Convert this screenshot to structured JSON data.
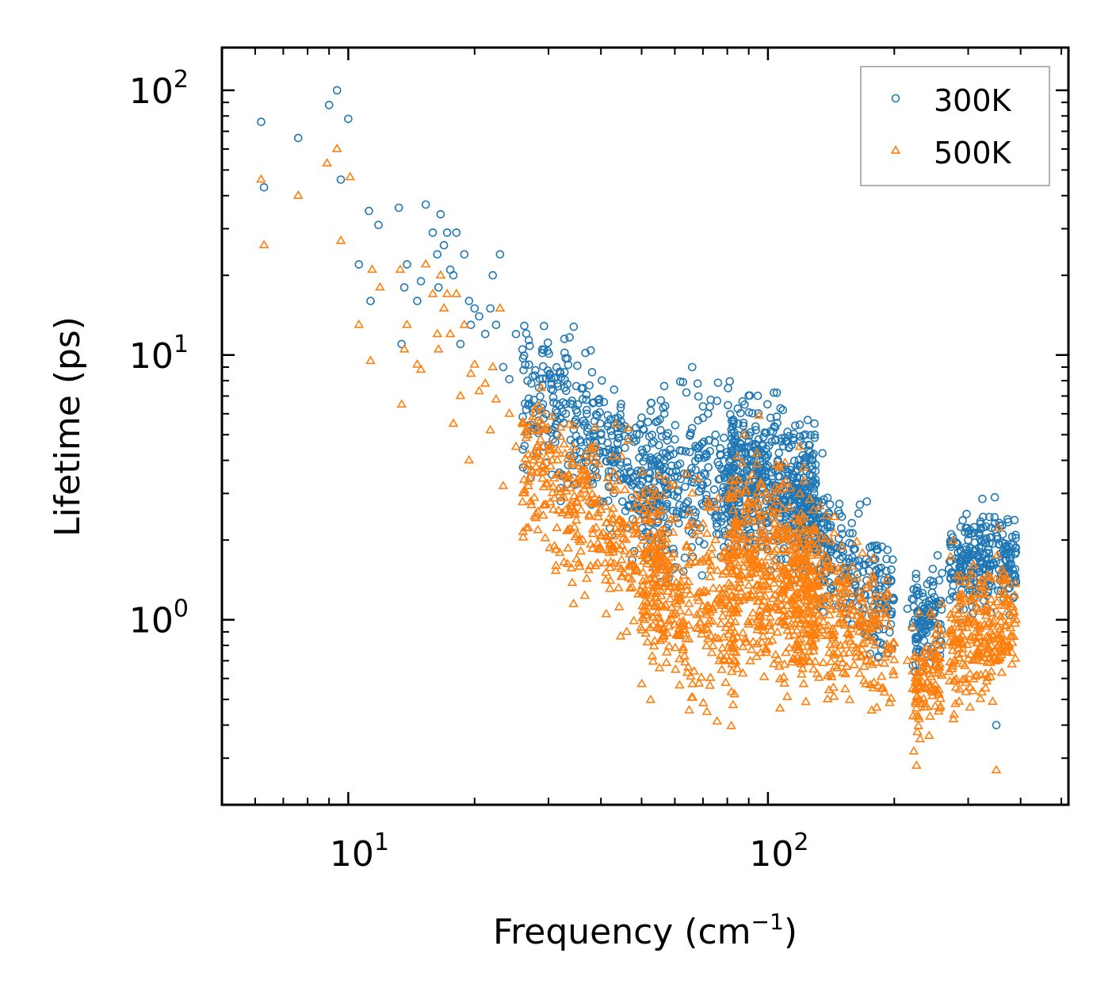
{
  "chart_data": {
    "type": "scatter",
    "title": "",
    "xlabel": "Frequency (cm",
    "xlabel_sup": "−1",
    "xlabel_tail": ")",
    "ylabel": "Lifetime (ps)",
    "xscale": "log",
    "yscale": "log",
    "xlim": [
      5,
      520
    ],
    "ylim": [
      0.2,
      145
    ],
    "grid": false,
    "legend_position": "top-right",
    "x_ticks": [
      {
        "value": 10,
        "base": "10",
        "exp": "1"
      },
      {
        "value": 100,
        "base": "10",
        "exp": "2"
      }
    ],
    "y_ticks": [
      {
        "value": 1,
        "base": "10",
        "exp": "0"
      },
      {
        "value": 10,
        "base": "10",
        "exp": "1"
      },
      {
        "value": 100,
        "base": "10",
        "exp": "2"
      }
    ],
    "series": [
      {
        "name": "300K",
        "marker": "circle",
        "color": "#1f77b4",
        "points": [
          [
            6.2,
            76
          ],
          [
            6.3,
            43
          ],
          [
            7.6,
            66
          ],
          [
            9.0,
            88
          ],
          [
            9.4,
            100
          ],
          [
            9.6,
            46
          ],
          [
            10.0,
            78
          ],
          [
            10.6,
            22
          ],
          [
            11.2,
            35
          ],
          [
            11.3,
            16
          ],
          [
            11.8,
            31
          ],
          [
            13.2,
            36
          ],
          [
            13.4,
            11
          ],
          [
            13.6,
            18
          ],
          [
            13.8,
            22
          ],
          [
            14.6,
            16
          ],
          [
            14.9,
            19
          ],
          [
            15.3,
            37
          ],
          [
            15.9,
            29
          ],
          [
            16.3,
            24
          ],
          [
            16.4,
            18
          ],
          [
            16.6,
            34
          ],
          [
            16.9,
            26
          ],
          [
            17.2,
            29
          ],
          [
            17.5,
            21
          ],
          [
            17.8,
            20
          ],
          [
            18.1,
            29
          ],
          [
            18.5,
            11
          ],
          [
            18.9,
            24
          ],
          [
            19.4,
            16
          ],
          [
            19.6,
            13
          ],
          [
            20.0,
            15
          ],
          [
            20.5,
            14
          ],
          [
            21.2,
            12
          ],
          [
            21.8,
            15
          ],
          [
            22.1,
            20
          ],
          [
            22.5,
            13
          ],
          [
            23.0,
            24
          ],
          [
            23.4,
            9.0
          ],
          [
            24.2,
            8.1
          ],
          [
            25.1,
            12
          ],
          [
            26.0,
            10.5
          ],
          [
            27.5,
            8.3
          ],
          [
            29.0,
            10.5
          ],
          [
            30.2,
            8.5
          ],
          [
            31.5,
            7.8
          ],
          [
            33.0,
            6.0
          ],
          [
            35.0,
            5.5
          ],
          [
            37.0,
            6.2
          ],
          [
            40.0,
            5.0
          ],
          [
            43.0,
            7.4
          ],
          [
            45.0,
            5.3
          ],
          [
            48.0,
            4.7
          ],
          [
            50.0,
            5.8
          ],
          [
            55.0,
            3.5
          ],
          [
            60.0,
            4.8
          ],
          [
            66.0,
            9.0
          ],
          [
            68.0,
            7.8
          ],
          [
            70.0,
            6.4
          ],
          [
            72.0,
            6.0
          ],
          [
            75.0,
            5.0
          ],
          [
            80.0,
            4.3
          ],
          [
            85.0,
            5.5
          ],
          [
            90.0,
            4.5
          ],
          [
            95.0,
            4.8
          ],
          [
            100.0,
            4.2
          ],
          [
            105.0,
            7.2
          ],
          [
            110.0,
            3.7
          ],
          [
            120.0,
            3.2
          ],
          [
            130.0,
            2.8
          ],
          [
            140.0,
            2.5
          ],
          [
            150.0,
            1.9
          ],
          [
            165.0,
            1.6
          ],
          [
            180.0,
            1.3
          ],
          [
            190.0,
            1.1
          ],
          [
            215.0,
            1.1
          ],
          [
            225.0,
            0.86
          ],
          [
            240.0,
            1.1
          ],
          [
            260.0,
            1.5
          ],
          [
            280.0,
            1.7
          ],
          [
            300.0,
            2.0
          ],
          [
            320.0,
            1.8
          ],
          [
            340.0,
            1.6
          ],
          [
            350.0,
            0.4
          ],
          [
            370.0,
            1.9
          ],
          [
            390.0,
            1.8
          ]
        ],
        "dense_regions": [
          {
            "x_range": [
              26,
              58
            ],
            "y_center": [
              7.5,
              3.0
            ],
            "spread": 0.28,
            "count": 380
          },
          {
            "x_range": [
              50,
              85
            ],
            "y_center": [
              3.0,
              3.4
            ],
            "spread": 0.32,
            "count": 260
          },
          {
            "x_range": [
              80,
              130
            ],
            "y_center": [
              3.6,
              3.0
            ],
            "spread": 0.28,
            "count": 480
          },
          {
            "x_range": [
              115,
              200
            ],
            "y_center": [
              2.6,
              1.1
            ],
            "spread": 0.22,
            "count": 300
          },
          {
            "x_range": [
              220,
              260
            ],
            "y_center": [
              0.95,
              1.0
            ],
            "spread": 0.2,
            "count": 110
          },
          {
            "x_range": [
              270,
              390
            ],
            "y_center": [
              1.6,
              1.7
            ],
            "spread": 0.17,
            "count": 260
          }
        ]
      },
      {
        "name": "500K",
        "marker": "triangle",
        "color": "#ff7f0e",
        "points": [
          [
            6.2,
            46
          ],
          [
            6.3,
            26
          ],
          [
            7.6,
            40
          ],
          [
            8.9,
            53
          ],
          [
            9.4,
            60
          ],
          [
            9.6,
            27
          ],
          [
            10.1,
            47
          ],
          [
            10.6,
            13
          ],
          [
            11.3,
            9.5
          ],
          [
            11.4,
            21
          ],
          [
            11.9,
            18
          ],
          [
            13.3,
            21
          ],
          [
            13.4,
            6.5
          ],
          [
            13.6,
            10.5
          ],
          [
            13.8,
            13
          ],
          [
            14.6,
            9.2
          ],
          [
            14.9,
            8.8
          ],
          [
            15.3,
            22
          ],
          [
            15.9,
            17
          ],
          [
            16.3,
            12
          ],
          [
            16.4,
            10.5
          ],
          [
            16.6,
            20
          ],
          [
            16.9,
            15
          ],
          [
            17.2,
            17
          ],
          [
            17.5,
            12
          ],
          [
            17.8,
            5.5
          ],
          [
            18.1,
            17
          ],
          [
            18.5,
            7.0
          ],
          [
            18.9,
            13
          ],
          [
            19.4,
            4.0
          ],
          [
            19.6,
            8.5
          ],
          [
            20.0,
            9.2
          ],
          [
            20.5,
            7.3
          ],
          [
            21.2,
            7.8
          ],
          [
            21.8,
            5.2
          ],
          [
            22.1,
            9.0
          ],
          [
            22.5,
            6.8
          ],
          [
            23.0,
            15
          ],
          [
            23.4,
            3.2
          ],
          [
            24.2,
            6.0
          ],
          [
            25.1,
            4.5
          ],
          [
            26.0,
            5.5
          ],
          [
            27.5,
            4.2
          ],
          [
            29.0,
            5.5
          ],
          [
            30.2,
            4.4
          ],
          [
            31.5,
            4.0
          ],
          [
            33.0,
            2.6
          ],
          [
            35.0,
            2.8
          ],
          [
            37.0,
            3.2
          ],
          [
            40.0,
            2.6
          ],
          [
            43.0,
            3.6
          ],
          [
            45.0,
            2.2
          ],
          [
            48.0,
            2.1
          ],
          [
            50.0,
            3.0
          ],
          [
            55.0,
            1.7
          ],
          [
            60.0,
            2.4
          ],
          [
            66.0,
            3.0
          ],
          [
            68.0,
            3.4
          ],
          [
            70.0,
            2.3
          ],
          [
            72.0,
            2.8
          ],
          [
            75.0,
            2.0
          ],
          [
            80.0,
            2.1
          ],
          [
            85.0,
            1.8
          ],
          [
            90.0,
            2.4
          ],
          [
            95.0,
            1.6
          ],
          [
            100.0,
            2.0
          ],
          [
            105.0,
            2.8
          ],
          [
            110.0,
            1.8
          ],
          [
            120.0,
            1.6
          ],
          [
            130.0,
            1.4
          ],
          [
            140.0,
            1.6
          ],
          [
            150.0,
            1.1
          ],
          [
            165.0,
            0.9
          ],
          [
            180.0,
            0.8
          ],
          [
            190.0,
            0.72
          ],
          [
            215.0,
            0.7
          ],
          [
            225.0,
            0.55
          ],
          [
            240.0,
            0.65
          ],
          [
            260.0,
            0.8
          ],
          [
            280.0,
            1.0
          ],
          [
            300.0,
            1.0
          ],
          [
            320.0,
            0.95
          ],
          [
            340.0,
            0.9
          ],
          [
            350.0,
            0.27
          ],
          [
            370.0,
            0.95
          ],
          [
            390.0,
            1.0
          ]
        ],
        "dense_regions": [
          {
            "x_range": [
              26,
              58
            ],
            "y_center": [
              4.0,
              1.5
            ],
            "spread": 0.3,
            "count": 380
          },
          {
            "x_range": [
              50,
              85
            ],
            "y_center": [
              1.4,
              1.0
            ],
            "spread": 0.38,
            "count": 320
          },
          {
            "x_range": [
              80,
              130
            ],
            "y_center": [
              1.8,
              1.3
            ],
            "spread": 0.38,
            "count": 480
          },
          {
            "x_range": [
              115,
              200
            ],
            "y_center": [
              1.3,
              0.8
            ],
            "spread": 0.3,
            "count": 300
          },
          {
            "x_range": [
              220,
              260
            ],
            "y_center": [
              0.55,
              0.65
            ],
            "spread": 0.22,
            "count": 110
          },
          {
            "x_range": [
              270,
              390
            ],
            "y_center": [
              0.85,
              0.95
            ],
            "spread": 0.25,
            "count": 260
          }
        ]
      }
    ]
  }
}
